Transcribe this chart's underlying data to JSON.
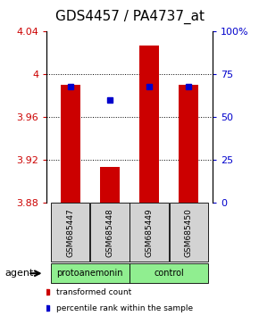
{
  "title": "GDS4457 / PA4737_at",
  "samples": [
    "GSM685447",
    "GSM685448",
    "GSM685449",
    "GSM685450"
  ],
  "bar_values": [
    3.99,
    3.913,
    4.027,
    3.99
  ],
  "bar_bottom": 3.88,
  "percentile_values": [
    68,
    60,
    68,
    68
  ],
  "percentile_scale": [
    0,
    100
  ],
  "ylim": [
    3.88,
    4.04
  ],
  "yticks": [
    3.88,
    3.92,
    3.96,
    4.0,
    4.04
  ],
  "ytick_labels": [
    "3.88",
    "3.92",
    "3.96",
    "4",
    "4.04"
  ],
  "right_yticks": [
    0,
    25,
    50,
    75,
    100
  ],
  "right_ytick_labels": [
    "0",
    "25",
    "50",
    "75",
    "100%"
  ],
  "bar_color": "#cc0000",
  "dot_color": "#0000cc",
  "bar_width": 0.5,
  "group_labels": [
    "protoanemonin",
    "control"
  ],
  "group_colors": [
    "#90ee90",
    "#90ee90"
  ],
  "agent_label": "agent",
  "grid_linestyle": "dotted",
  "title_fontsize": 11,
  "tick_fontsize": 8,
  "label_fontsize": 8,
  "legend_fontsize": 7,
  "background_color": "#ffffff",
  "plot_bg": "#ffffff",
  "sample_box_color": "#d3d3d3"
}
